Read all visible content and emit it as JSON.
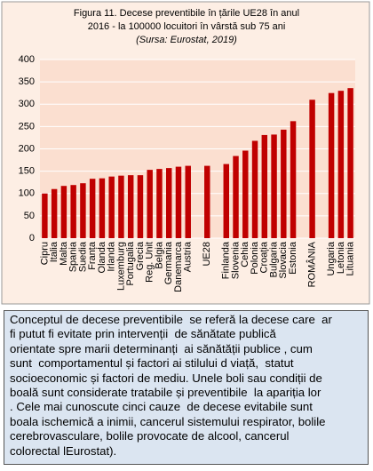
{
  "chart_data": {
    "type": "bar",
    "title": [
      "Figura 11. Decese preventibile în țările UE28 în anul",
      "2016 - la 100000 locuitori în vârstă sub 75 ani"
    ],
    "source": "(Sursa: Eurostat, 2019)",
    "categories": [
      "Cipru",
      "Italia",
      "Malta",
      "Spania",
      "Suedia",
      "Franța",
      "Olanda",
      "Irlanda",
      "Luxemburg",
      "Portugalia",
      "Grecia",
      "Reg. Unit",
      "Belgia",
      "Germania",
      "Danemarca",
      "Austria",
      null,
      "UE28",
      null,
      "Finlanda",
      "Slovenia",
      "Cehia",
      "Polonia",
      "Croația",
      "Bulgaria",
      "Slovacia",
      "Estonia",
      null,
      "ROMÂNIA",
      null,
      "Ungaria",
      "Letonia",
      "Lituania"
    ],
    "values": [
      100,
      110,
      117,
      119,
      123,
      133,
      134,
      138,
      140,
      141,
      141,
      153,
      155,
      157,
      160,
      162,
      null,
      162,
      null,
      166,
      184,
      196,
      218,
      231,
      232,
      243,
      262,
      null,
      310,
      null,
      325,
      330,
      336
    ],
    "color": "#c00000",
    "ylim": [
      0,
      400
    ],
    "yticks": [
      0,
      50,
      100,
      150,
      200,
      250,
      300,
      350,
      400
    ],
    "grid": true
  },
  "note": {
    "lines": [
      "Conceptul de decese preventibile  se referă la decese care  ar",
      "fi putut fi evitate prin intervenții  de sănătate publică",
      "orientate spre marii determinanți  ai sănătății publice , cum",
      "sunt  comportamentul și factori ai stilului d viață,  statut",
      "socioeconomic și factori de mediu. Unele boli sau condiții de",
      "boală sunt considerate tratabile și preventibile  la apariția lor",
      ". Cele mai cunoscute cinci cauze  de decese evitabile sunt",
      "boala ischemică a inimii, cancerul sistemului respirator, bolile",
      "cerebrovasculare, bolile provocate de alcool, cancerul",
      "colorectal lEurostat)."
    ]
  }
}
